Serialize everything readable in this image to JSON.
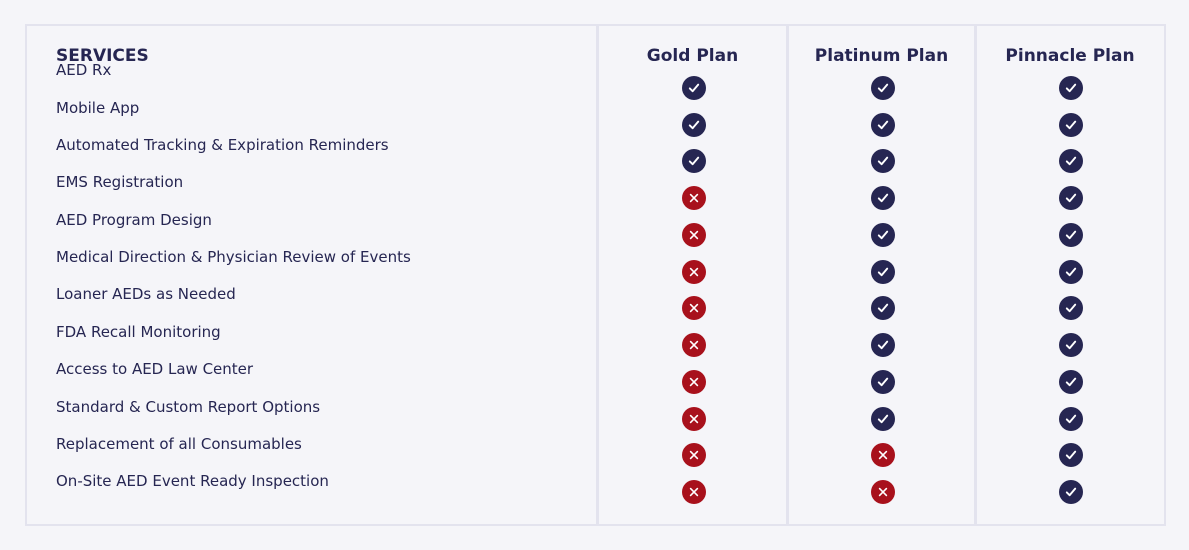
{
  "table": {
    "services_header": "SERVICES",
    "plans": [
      {
        "key": "gold",
        "label": "Gold Plan"
      },
      {
        "key": "platinum",
        "label": "Platinum Plan"
      },
      {
        "key": "pinnacle",
        "label": "Pinnacle Plan"
      }
    ],
    "rows": [
      {
        "service": "AED Rx",
        "gold": true,
        "platinum": true,
        "pinnacle": true
      },
      {
        "service": "Mobile App",
        "gold": true,
        "platinum": true,
        "pinnacle": true
      },
      {
        "service": "Automated Tracking & Expiration Reminders",
        "gold": true,
        "platinum": true,
        "pinnacle": true
      },
      {
        "service": "EMS Registration",
        "gold": false,
        "platinum": true,
        "pinnacle": true
      },
      {
        "service": "AED Program Design",
        "gold": false,
        "platinum": true,
        "pinnacle": true
      },
      {
        "service": "Medical Direction & Physician Review of Events",
        "gold": false,
        "platinum": true,
        "pinnacle": true
      },
      {
        "service": "Loaner AEDs as Needed",
        "gold": false,
        "platinum": true,
        "pinnacle": true
      },
      {
        "service": "FDA Recall Monitoring",
        "gold": false,
        "platinum": true,
        "pinnacle": true
      },
      {
        "service": "Access to AED Law Center",
        "gold": false,
        "platinum": true,
        "pinnacle": true
      },
      {
        "service": "Standard & Custom Report Options",
        "gold": false,
        "platinum": true,
        "pinnacle": true
      },
      {
        "service": "Replacement of all Consumables",
        "gold": false,
        "platinum": false,
        "pinnacle": true
      },
      {
        "service": "On-Site AED Event Ready Inspection",
        "gold": false,
        "platinum": false,
        "pinnacle": true
      }
    ],
    "icons": {
      "included": "check-circle-icon",
      "excluded": "x-circle-icon"
    },
    "colors": {
      "included": "#262652",
      "excluded": "#a8111c",
      "text": "#262652",
      "border": "#e3e3ee"
    }
  }
}
